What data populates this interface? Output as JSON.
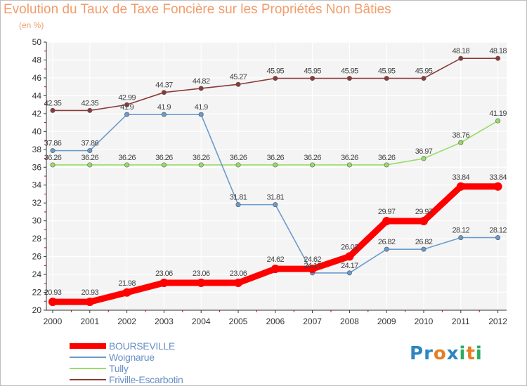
{
  "title": "Evolution du Taux de Taxe Foncière sur les Propriétés Non Bâties",
  "subtitle": "(en %)",
  "logo": {
    "letters": [
      {
        "char": "P",
        "color": "#2e86c1"
      },
      {
        "char": "r",
        "color": "#2e86c1"
      },
      {
        "char": "o",
        "color": "#e67e22"
      },
      {
        "char": "x",
        "color": "#2e86c1"
      },
      {
        "char": "i",
        "color": "#27ae60"
      },
      {
        "char": "t",
        "color": "#e67e22"
      },
      {
        "char": "i",
        "color": "#27ae60"
      }
    ]
  },
  "chart_data": {
    "type": "line",
    "title": "Evolution du Taux de Taxe Foncière sur les Propriétés Non Bâties",
    "ylabel": "(en %)",
    "x": [
      "2000",
      "2001",
      "2002",
      "2003",
      "2004",
      "2005",
      "2006",
      "2007",
      "2008",
      "2009",
      "2010",
      "2011",
      "2012"
    ],
    "ylim": [
      20,
      50
    ],
    "yticks": [
      "20",
      "22",
      "24",
      "26",
      "28",
      "30",
      "32",
      "34",
      "36",
      "38",
      "40",
      "42",
      "44",
      "46",
      "48",
      "50"
    ],
    "grid": true,
    "legend_position": "bottom-left",
    "series": [
      {
        "name": "BOURSEVILLE",
        "color": "#ff0000",
        "values": [
          20.93,
          20.93,
          21.98,
          23.06,
          23.06,
          23.06,
          24.62,
          24.62,
          26.02,
          29.97,
          29.97,
          33.84,
          33.84
        ],
        "labels": [
          "20.93",
          "20.93",
          "21.98",
          "23.06",
          "23.06",
          "23.06",
          "24.62",
          "24.62",
          "26.02",
          "29.97",
          "29.97",
          "33.84",
          "33.84"
        ]
      },
      {
        "name": "Woignarue",
        "color": "#6a9ccc",
        "values": [
          37.86,
          37.86,
          41.9,
          41.9,
          41.9,
          31.81,
          31.81,
          24.17,
          24.17,
          26.82,
          26.82,
          28.12,
          28.12
        ],
        "labels": [
          "37.86",
          "37.86",
          "41.9",
          "41.9",
          "41.9",
          "31.81",
          "31.81",
          "24.17",
          "24.17",
          "26.82",
          "26.82",
          "28.12",
          "28.12"
        ]
      },
      {
        "name": "Tully",
        "color": "#99dd66",
        "values": [
          36.26,
          36.26,
          36.26,
          36.26,
          36.26,
          36.26,
          36.26,
          36.26,
          36.26,
          36.26,
          36.97,
          38.76,
          41.19
        ],
        "labels": [
          "36.26",
          "36.26",
          "36.26",
          "36.26",
          "36.26",
          "36.26",
          "36.26",
          "36.26",
          "36.26",
          "36.26",
          "36.97",
          "38.76",
          "41.19"
        ]
      },
      {
        "name": "Friville-Escarbotin",
        "color": "#8b3a3a",
        "values": [
          42.35,
          42.35,
          42.99,
          44.37,
          44.82,
          45.27,
          45.95,
          45.95,
          45.95,
          45.95,
          45.95,
          48.18,
          48.18
        ],
        "labels": [
          "42.35",
          "42.35",
          "42.99",
          "44.37",
          "44.82",
          "45.27",
          "45.95",
          "45.95",
          "45.95",
          "45.95",
          "45.95",
          "48.18",
          "48.18"
        ]
      }
    ]
  }
}
